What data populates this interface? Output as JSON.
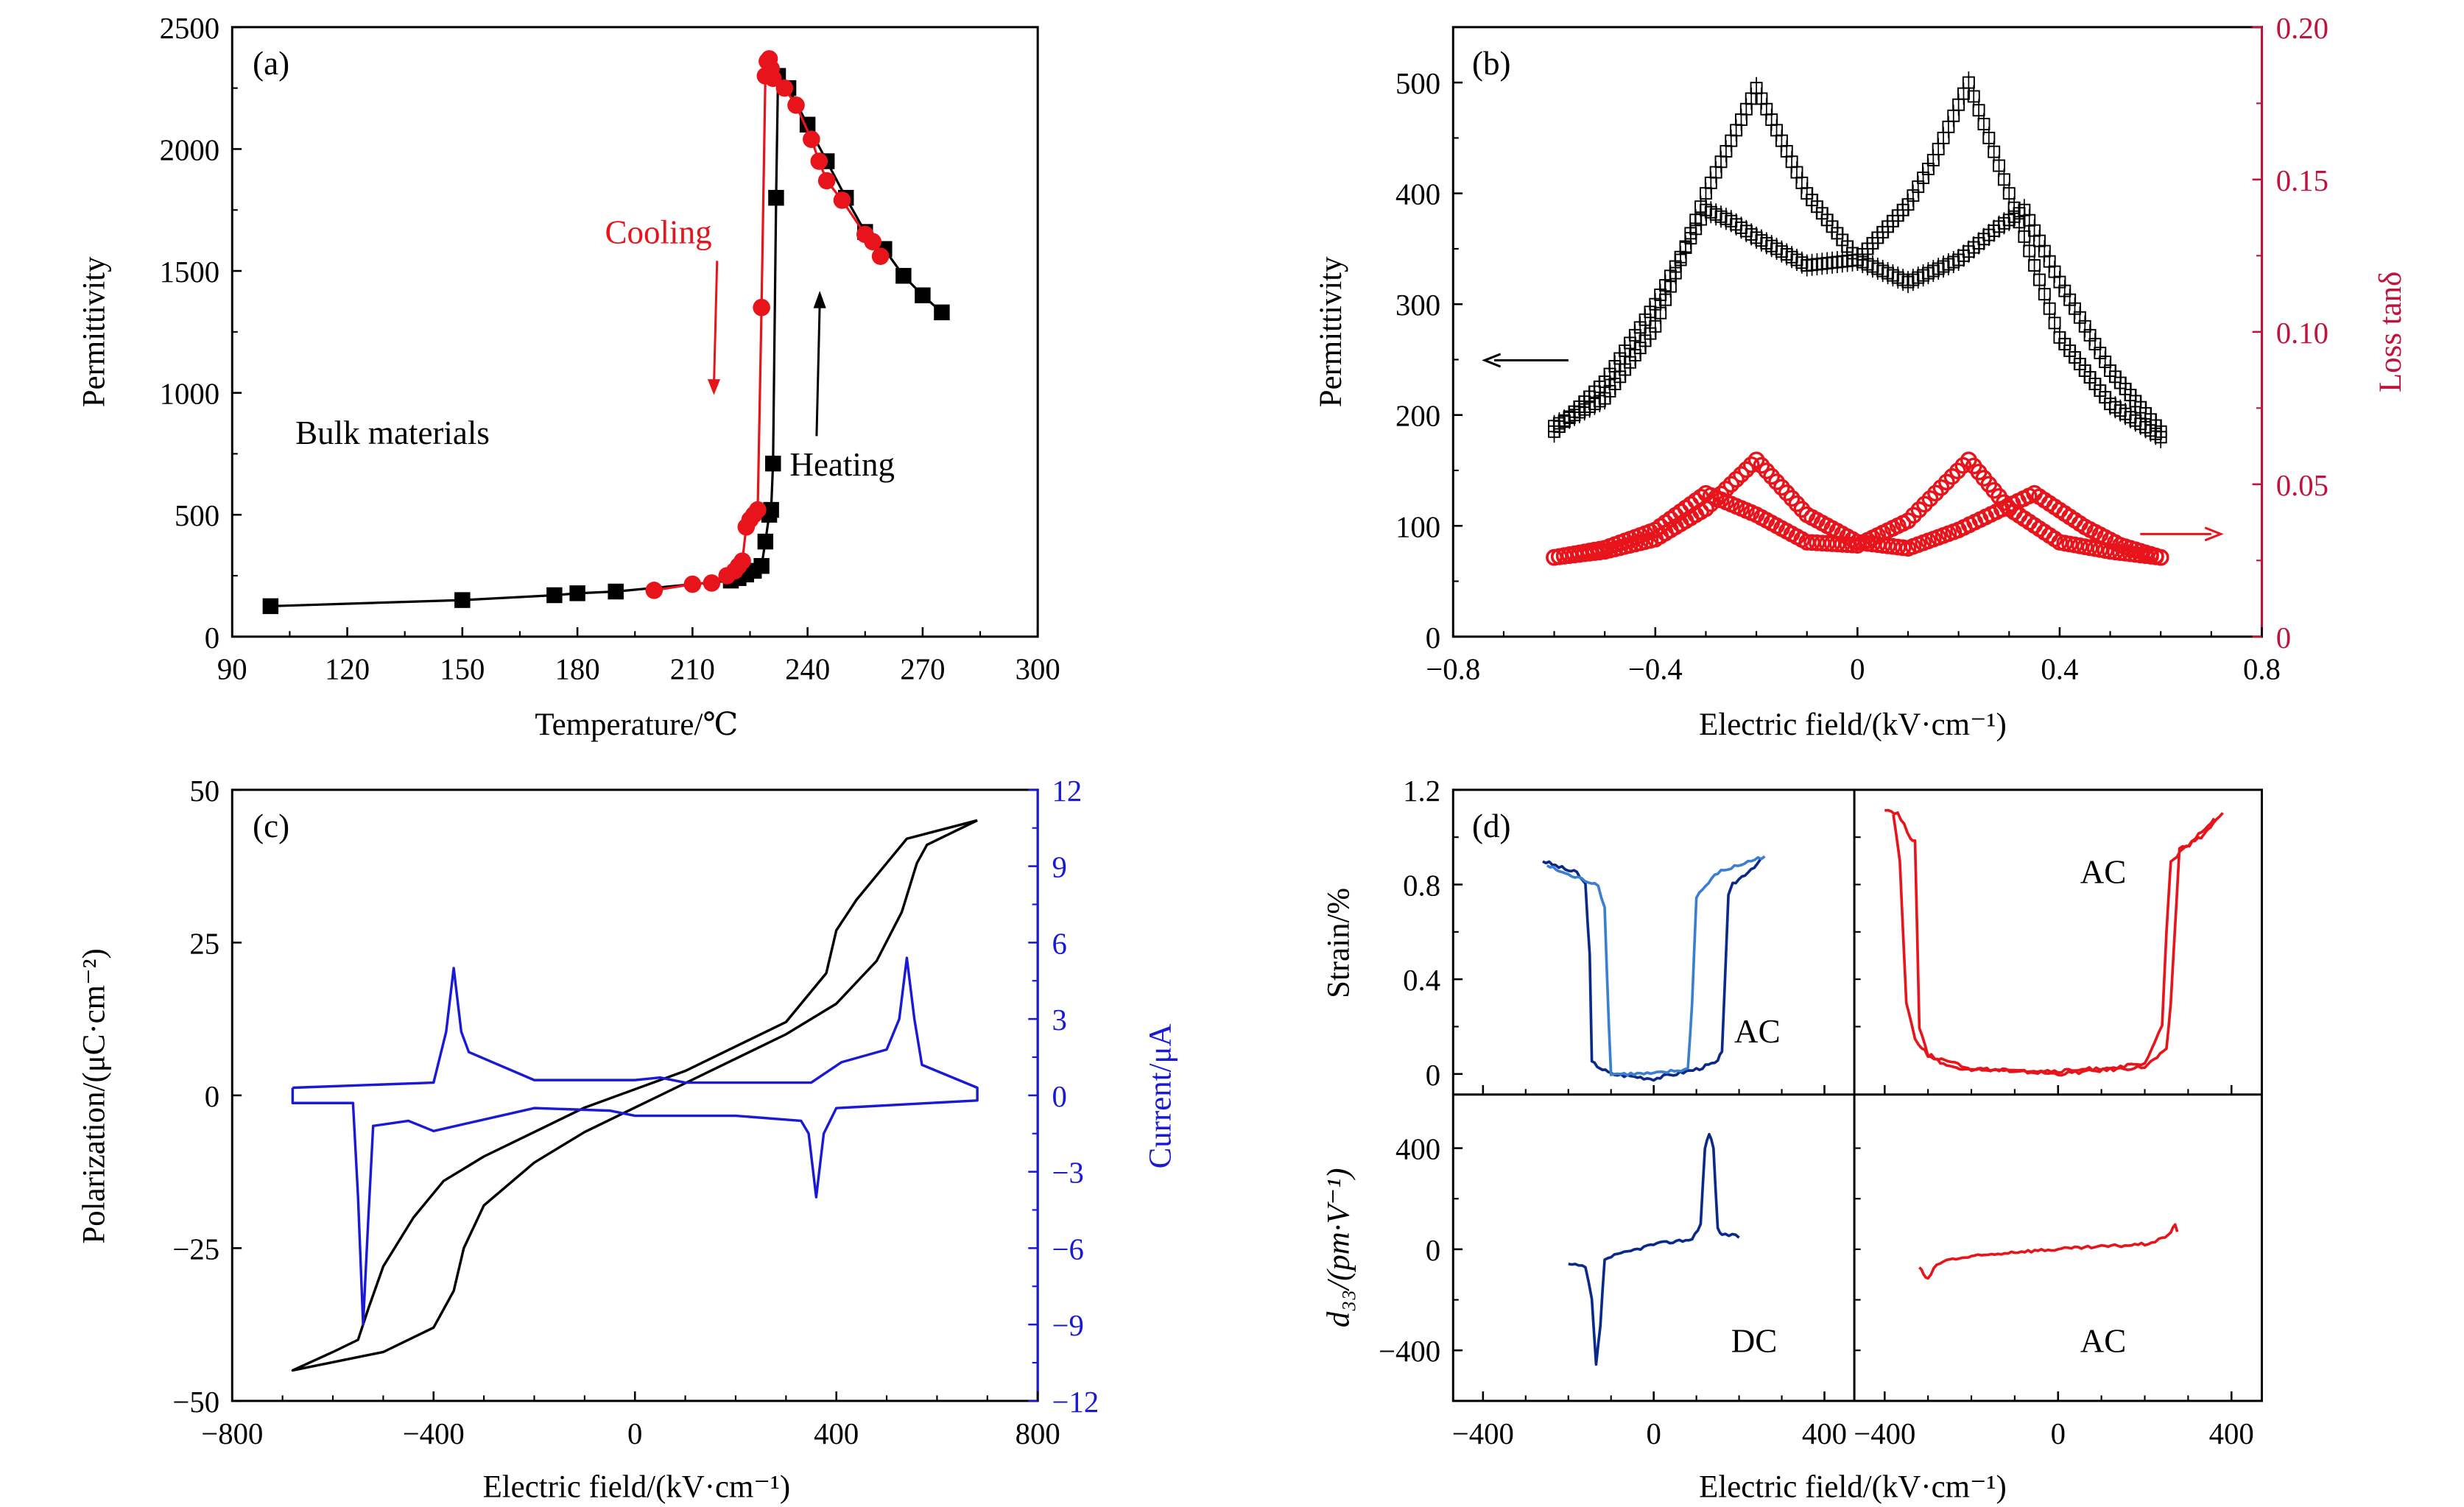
{
  "colors": {
    "black": "#000000",
    "red": "#e8141c",
    "blue": "#1a1ad6",
    "dark_blue": "#0a2a8a",
    "light_blue": "#3a7fd0",
    "axis_red": "#c0143c"
  },
  "chart_data": [
    {
      "panel": "(a)",
      "type": "line",
      "xlabel": "Temperature/℃",
      "ylabel": "Permittivity",
      "xlim": [
        90,
        300
      ],
      "ylim": [
        0,
        2500
      ],
      "xticks": [
        "90",
        "120",
        "150",
        "180",
        "210",
        "240",
        "270",
        "300"
      ],
      "yticks": [
        "0",
        "500",
        "1000",
        "1500",
        "2000",
        "2500"
      ],
      "annotations": {
        "cooling": "Cooling",
        "heating": "Heating",
        "bulk": "Bulk materials"
      },
      "series": [
        {
          "name": "Heating",
          "marker": "square",
          "color": "#000000",
          "x": [
            100,
            150,
            174,
            180,
            190,
            220,
            222,
            224,
            226,
            228,
            229,
            230,
            230.5,
            231,
            231.8,
            232.3,
            235,
            240,
            245,
            250,
            255,
            260,
            265,
            270,
            275
          ],
          "y": [
            125,
            150,
            170,
            178,
            185,
            230,
            240,
            255,
            270,
            290,
            390,
            500,
            520,
            710,
            1800,
            2300,
            2250,
            2100,
            1950,
            1800,
            1660,
            1590,
            1480,
            1400,
            1330
          ]
        },
        {
          "name": "Cooling",
          "marker": "circle",
          "color": "#e8141c",
          "x": [
            200,
            210,
            215,
            219,
            221,
            222,
            223,
            224,
            225,
            226,
            227,
            228,
            229,
            229.5,
            230,
            230.5,
            231,
            234,
            237,
            241,
            243,
            245,
            249,
            255,
            257,
            259
          ],
          "y": [
            190,
            215,
            220,
            250,
            270,
            290,
            310,
            450,
            480,
            500,
            520,
            1350,
            2300,
            2360,
            2370,
            2330,
            2290,
            2250,
            2180,
            2040,
            1950,
            1870,
            1790,
            1650,
            1620,
            1560
          ]
        }
      ]
    },
    {
      "panel": "(b)",
      "type": "scatter",
      "xlabel": "Electric field/(kV·cm⁻¹)",
      "ylabel": "Permittivity",
      "y2label": "Loss tanδ",
      "xlim": [
        -0.8,
        0.8
      ],
      "ylim": [
        0,
        550
      ],
      "y2lim": [
        0,
        0.2
      ],
      "xticks": [
        "−0.8",
        "−0.4",
        "0",
        "0.4",
        "0.8"
      ],
      "yticks": [
        "0",
        "100",
        "200",
        "300",
        "400",
        "500"
      ],
      "y2ticks": [
        "0",
        "0.05",
        "0.10",
        "0.15",
        "0.20"
      ],
      "series": [
        {
          "axis": "left",
          "marker": "square-errorbar",
          "color": "#000000",
          "x": [
            -0.6,
            -0.5,
            -0.4,
            -0.3,
            -0.25,
            -0.2,
            -0.1,
            0,
            0.1,
            0.15,
            0.22,
            0.3,
            0.4,
            0.5,
            0.6
          ],
          "y": [
            185,
            230,
            300,
            385,
            375,
            360,
            335,
            340,
            390,
            430,
            500,
            400,
            270,
            210,
            180
          ]
        },
        {
          "axis": "left",
          "marker": "square-errorbar",
          "color": "#000000",
          "x": [
            -0.6,
            -0.5,
            -0.4,
            -0.3,
            -0.2,
            -0.1,
            0,
            0.1,
            0.2,
            0.28,
            0.33,
            0.4,
            0.5,
            0.6
          ],
          "y": [
            190,
            215,
            280,
            400,
            495,
            400,
            340,
            320,
            340,
            370,
            385,
            320,
            240,
            185
          ]
        },
        {
          "axis": "right",
          "marker": "circle",
          "color": "#e8141c",
          "x": [
            -0.6,
            -0.5,
            -0.4,
            -0.3,
            -0.2,
            -0.1,
            0,
            0.1,
            0.22,
            0.3,
            0.4,
            0.5,
            0.6
          ],
          "y": [
            0.026,
            0.029,
            0.035,
            0.047,
            0.04,
            0.031,
            0.03,
            0.038,
            0.058,
            0.042,
            0.031,
            0.028,
            0.026
          ]
        },
        {
          "axis": "right",
          "marker": "circle",
          "color": "#e8141c",
          "x": [
            -0.6,
            -0.5,
            -0.4,
            -0.3,
            -0.2,
            -0.1,
            0,
            0.1,
            0.2,
            0.35,
            0.45,
            0.52,
            0.6
          ],
          "y": [
            0.026,
            0.028,
            0.032,
            0.042,
            0.058,
            0.04,
            0.031,
            0.029,
            0.035,
            0.047,
            0.036,
            0.03,
            0.026
          ]
        }
      ]
    },
    {
      "panel": "(c)",
      "type": "line",
      "xlabel": "Electric field/(kV·cm⁻¹)",
      "ylabel": "Polarization/(μC·cm⁻²)",
      "y2label": "Current/μA",
      "xlim": [
        -800,
        800
      ],
      "ylim": [
        -50,
        50
      ],
      "y2lim": [
        -12,
        12
      ],
      "xticks": [
        "−800",
        "−400",
        "0",
        "400",
        "800"
      ],
      "yticks": [
        "−50",
        "−25",
        "0",
        "25",
        "50"
      ],
      "y2ticks": [
        "−12",
        "−9",
        "−6",
        "−3",
        "0",
        "3",
        "6",
        "9",
        "12"
      ],
      "series": [
        {
          "name": "P",
          "axis": "left",
          "color": "#000000",
          "x": [
            680,
            540,
            500,
            440,
            400,
            380,
            300,
            200,
            100,
            0,
            -100,
            -200,
            -300,
            -380,
            -440,
            -500,
            -530,
            -550,
            -600,
            -680,
            -500,
            -400,
            -360,
            -340,
            -300,
            -200,
            -100,
            0,
            100,
            200,
            300,
            400,
            480,
            530,
            560,
            580,
            680
          ],
          "y": [
            45,
            42,
            38,
            32,
            27,
            20,
            12,
            8,
            4,
            1,
            -2,
            -6,
            -10,
            -14,
            -20,
            -28,
            -35,
            -40,
            -42,
            -45,
            -42,
            -38,
            -32,
            -25,
            -18,
            -11,
            -6,
            -2,
            2,
            6,
            10,
            15,
            22,
            30,
            38,
            41,
            45
          ]
        },
        {
          "name": "I",
          "axis": "right",
          "color": "#1a1ad6",
          "x": [
            -680,
            -400,
            -375,
            -360,
            -345,
            -330,
            -200,
            0,
            50,
            100,
            350,
            410,
            500,
            525,
            540,
            555,
            570,
            680,
            680,
            400,
            375,
            360,
            345,
            330,
            200,
            0,
            -50,
            -200,
            -400,
            -450,
            -520,
            -530,
            -540,
            -550,
            -560,
            -680,
            -680
          ],
          "y": [
            0.3,
            0.5,
            2.5,
            5,
            2.5,
            1.7,
            0.6,
            0.6,
            0.7,
            0.5,
            0.5,
            1.3,
            1.8,
            3,
            5.4,
            3,
            1.2,
            0.3,
            -0.2,
            -0.5,
            -1.5,
            -4,
            -1.5,
            -1,
            -0.8,
            -0.8,
            -0.6,
            -0.5,
            -1.4,
            -1,
            -1.2,
            -5,
            -9,
            -4,
            -0.3,
            -0.3,
            0.3
          ]
        }
      ]
    },
    {
      "panel": "(d)",
      "type": "line",
      "xlabel": "Electric field/(kV·cm⁻¹)",
      "ylabel_top": "Strain/%",
      "ylabel_bottom": "d₃₃/(pm·V⁻¹)",
      "xlim": [
        -470,
        470
      ],
      "ylim_top": [
        -0.087,
        1.2
      ],
      "ylim_bottom": [
        -600,
        612
      ],
      "xticks": [
        "−400",
        "0",
        "400"
      ],
      "yticks_top": [
        "0",
        "0.4",
        "0.8",
        "1.2"
      ],
      "yticks_bottom": [
        "−400",
        "0",
        "400"
      ],
      "subplots": [
        {
          "label": "AC",
          "quantity": "strain",
          "color": "#1e5fc0",
          "curves": [
            {
              "x": [
                -260,
                -200,
                -180,
                -160,
                -150,
                -145,
                -120,
                -100,
                0,
                100,
                150,
                160,
                175,
                185,
                250
              ],
              "y": [
                0.9,
                0.86,
                0.85,
                0.8,
                0.5,
                0.05,
                0.02,
                0.0,
                -0.02,
                0.02,
                0.05,
                0.1,
                0.75,
                0.8,
                0.9
              ]
            },
            {
              "x": [
                -250,
                -200,
                -130,
                -115,
                -105,
                -100,
                0,
                80,
                90,
                100,
                150,
                260
              ],
              "y": [
                0.88,
                0.84,
                0.8,
                0.7,
                0.2,
                0.0,
                0.0,
                0.02,
                0.3,
                0.75,
                0.85,
                0.92
              ]
            }
          ]
        },
        {
          "label": "AC",
          "quantity": "strain",
          "color": "#e8141c",
          "curves": [
            {
              "x": [
                -400,
                -370,
                -340,
                -330,
                -320,
                -300,
                -250,
                0,
                200,
                250,
                260,
                280,
                330,
                380
              ],
              "y": [
                1.12,
                1.1,
                1.0,
                0.98,
                0.2,
                0.08,
                0.03,
                0.0,
                0.03,
                0.1,
                0.3,
                0.95,
                1.0,
                1.1
              ]
            },
            {
              "x": [
                -380,
                -365,
                -350,
                -330,
                -300,
                -200,
                0,
                200,
                240,
                250,
                260,
                310,
                360
              ],
              "y": [
                1.1,
                0.9,
                0.3,
                0.15,
                0.08,
                0.02,
                0.01,
                0.04,
                0.2,
                0.6,
                0.9,
                0.98,
                1.08
              ]
            }
          ]
        },
        {
          "label": "DC",
          "quantity": "d33",
          "color": "#1e5fc0",
          "curves": [
            {
              "x": [
                -200,
                -160,
                -145,
                -135,
                -125,
                -115,
                -100,
                0,
                90,
                110,
                120,
                130,
                140,
                150,
                160,
                200
              ],
              "y": [
                -60,
                -70,
                -200,
                -460,
                -300,
                -40,
                -30,
                20,
                40,
                100,
                400,
                460,
                400,
                80,
                60,
                50
              ]
            }
          ]
        },
        {
          "label": "AC",
          "quantity": "d33",
          "color": "#e8141c",
          "curves": [
            {
              "x": [
                -320,
                -310,
                -300,
                -280,
                -250,
                -200,
                -100,
                0,
                100,
                200,
                240,
                260,
                270,
                275
              ],
              "y": [
                -70,
                -100,
                -120,
                -60,
                -40,
                -30,
                -10,
                0,
                10,
                20,
                40,
                70,
                100,
                70
              ]
            }
          ]
        }
      ]
    }
  ]
}
